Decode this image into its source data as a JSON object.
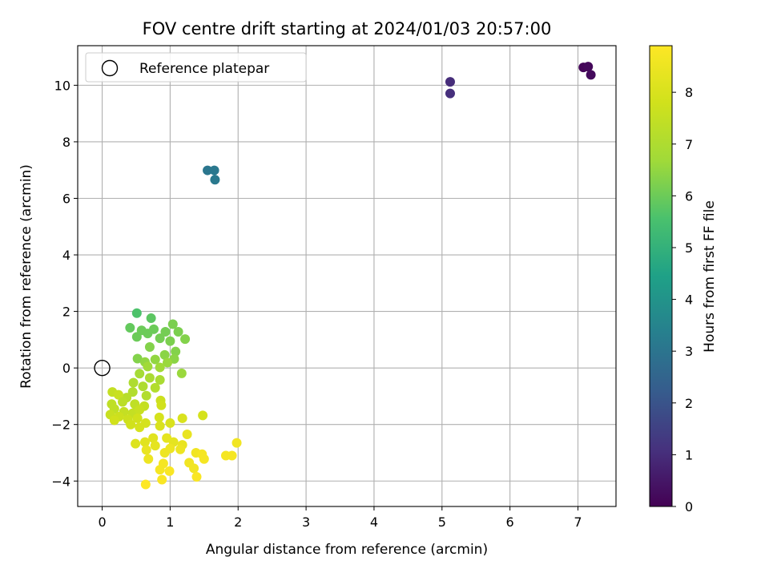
{
  "chart_data": {
    "type": "scatter",
    "title": "FOV centre drift starting at 2024/01/03 20:57:00",
    "xlabel": "Angular distance from reference (arcmin)",
    "ylabel": "Rotation from reference (arcmin)",
    "xlim": [
      -0.36,
      7.56
    ],
    "ylim": [
      -4.9,
      11.4
    ],
    "x_ticks": [
      "0",
      "1",
      "2",
      "3",
      "4",
      "5",
      "6",
      "7"
    ],
    "y_ticks": [
      "−4",
      "−2",
      "0",
      "2",
      "4",
      "6",
      "8",
      "10"
    ],
    "grid": true,
    "legend": {
      "location": "upper-left",
      "entry": "Reference platepar"
    },
    "colorbar": {
      "label": "Hours from first FF file",
      "colormap": "viridis",
      "range": [
        0,
        8.9
      ],
      "ticks": [
        "0",
        "1",
        "2",
        "3",
        "4",
        "5",
        "6",
        "7",
        "8"
      ]
    },
    "reference": {
      "x": 0,
      "y": 0
    },
    "points": [
      {
        "x": 7.08,
        "y": 10.63,
        "t": 0.1
      },
      {
        "x": 7.15,
        "y": 10.66,
        "t": 0.15
      },
      {
        "x": 7.19,
        "y": 10.37,
        "t": 0.2
      },
      {
        "x": 5.12,
        "y": 10.12,
        "t": 1.0
      },
      {
        "x": 5.12,
        "y": 9.71,
        "t": 1.05
      },
      {
        "x": 1.55,
        "y": 6.99,
        "t": 3.05
      },
      {
        "x": 1.65,
        "y": 6.99,
        "t": 3.1
      },
      {
        "x": 1.66,
        "y": 6.66,
        "t": 3.15
      },
      {
        "x": 0.51,
        "y": 1.94,
        "t": 5.6
      },
      {
        "x": 0.72,
        "y": 1.76,
        "t": 5.8
      },
      {
        "x": 0.41,
        "y": 1.42,
        "t": 5.9
      },
      {
        "x": 0.58,
        "y": 1.33,
        "t": 6.0
      },
      {
        "x": 0.76,
        "y": 1.37,
        "t": 6.0
      },
      {
        "x": 0.93,
        "y": 1.28,
        "t": 6.1
      },
      {
        "x": 1.04,
        "y": 1.55,
        "t": 6.2
      },
      {
        "x": 1.12,
        "y": 1.28,
        "t": 6.2
      },
      {
        "x": 1.22,
        "y": 1.02,
        "t": 6.3
      },
      {
        "x": 0.51,
        "y": 1.1,
        "t": 6.0
      },
      {
        "x": 0.67,
        "y": 1.22,
        "t": 6.0
      },
      {
        "x": 0.85,
        "y": 1.05,
        "t": 6.1
      },
      {
        "x": 1.0,
        "y": 0.95,
        "t": 6.2
      },
      {
        "x": 1.08,
        "y": 0.58,
        "t": 6.3
      },
      {
        "x": 0.7,
        "y": 0.74,
        "t": 6.3
      },
      {
        "x": 0.92,
        "y": 0.46,
        "t": 6.4
      },
      {
        "x": 1.06,
        "y": 0.32,
        "t": 6.4
      },
      {
        "x": 0.52,
        "y": 0.33,
        "t": 6.3
      },
      {
        "x": 0.63,
        "y": 0.21,
        "t": 6.5
      },
      {
        "x": 0.78,
        "y": 0.3,
        "t": 6.5
      },
      {
        "x": 0.96,
        "y": 0.19,
        "t": 6.6
      },
      {
        "x": 0.67,
        "y": 0.05,
        "t": 6.7
      },
      {
        "x": 0.85,
        "y": 0.02,
        "t": 6.7
      },
      {
        "x": 1.17,
        "y": -0.19,
        "t": 6.6
      },
      {
        "x": 0.55,
        "y": -0.2,
        "t": 6.8
      },
      {
        "x": 0.7,
        "y": -0.35,
        "t": 6.9
      },
      {
        "x": 0.85,
        "y": -0.42,
        "t": 6.9
      },
      {
        "x": 0.46,
        "y": -0.52,
        "t": 7.0
      },
      {
        "x": 0.6,
        "y": -0.65,
        "t": 7.0
      },
      {
        "x": 0.78,
        "y": -0.7,
        "t": 7.1
      },
      {
        "x": 0.45,
        "y": -0.85,
        "t": 7.1
      },
      {
        "x": 0.65,
        "y": -0.98,
        "t": 7.1
      },
      {
        "x": 0.36,
        "y": -1.05,
        "t": 7.2
      },
      {
        "x": 0.15,
        "y": -0.85,
        "t": 7.5
      },
      {
        "x": 0.24,
        "y": -0.95,
        "t": 7.6
      },
      {
        "x": 0.14,
        "y": -1.28,
        "t": 7.4
      },
      {
        "x": 0.3,
        "y": -1.2,
        "t": 7.3
      },
      {
        "x": 0.48,
        "y": -1.28,
        "t": 7.4
      },
      {
        "x": 0.62,
        "y": -1.35,
        "t": 7.5
      },
      {
        "x": 0.18,
        "y": -1.45,
        "t": 7.4
      },
      {
        "x": 0.32,
        "y": -1.55,
        "t": 7.5
      },
      {
        "x": 0.45,
        "y": -1.6,
        "t": 7.5
      },
      {
        "x": 0.55,
        "y": -1.48,
        "t": 7.6
      },
      {
        "x": 0.12,
        "y": -1.65,
        "t": 7.6
      },
      {
        "x": 0.25,
        "y": -1.72,
        "t": 7.7
      },
      {
        "x": 0.38,
        "y": -1.82,
        "t": 7.7
      },
      {
        "x": 0.52,
        "y": -1.78,
        "t": 7.8
      },
      {
        "x": 0.18,
        "y": -1.85,
        "t": 7.8
      },
      {
        "x": 0.42,
        "y": -2.0,
        "t": 7.8
      },
      {
        "x": 0.55,
        "y": -2.1,
        "t": 7.9
      },
      {
        "x": 0.64,
        "y": -1.95,
        "t": 7.9
      },
      {
        "x": 0.86,
        "y": -1.15,
        "t": 7.7
      },
      {
        "x": 0.87,
        "y": -1.32,
        "t": 7.8
      },
      {
        "x": 0.84,
        "y": -1.75,
        "t": 7.9
      },
      {
        "x": 0.85,
        "y": -2.05,
        "t": 8.0
      },
      {
        "x": 1.0,
        "y": -1.95,
        "t": 8.0
      },
      {
        "x": 1.18,
        "y": -1.78,
        "t": 8.0
      },
      {
        "x": 1.48,
        "y": -1.68,
        "t": 7.9
      },
      {
        "x": 0.49,
        "y": -2.68,
        "t": 8.1
      },
      {
        "x": 0.63,
        "y": -2.62,
        "t": 8.2
      },
      {
        "x": 0.75,
        "y": -2.48,
        "t": 8.2
      },
      {
        "x": 0.78,
        "y": -2.75,
        "t": 8.3
      },
      {
        "x": 0.95,
        "y": -2.48,
        "t": 8.3
      },
      {
        "x": 1.05,
        "y": -2.62,
        "t": 8.3
      },
      {
        "x": 1.18,
        "y": -2.72,
        "t": 8.4
      },
      {
        "x": 1.25,
        "y": -2.35,
        "t": 8.4
      },
      {
        "x": 0.68,
        "y": -3.22,
        "t": 8.5
      },
      {
        "x": 0.65,
        "y": -2.9,
        "t": 8.4
      },
      {
        "x": 0.92,
        "y": -3.0,
        "t": 8.5
      },
      {
        "x": 1.0,
        "y": -2.85,
        "t": 8.5
      },
      {
        "x": 1.15,
        "y": -2.88,
        "t": 8.5
      },
      {
        "x": 1.28,
        "y": -3.35,
        "t": 8.6
      },
      {
        "x": 1.35,
        "y": -3.55,
        "t": 8.6
      },
      {
        "x": 1.38,
        "y": -3.0,
        "t": 8.6
      },
      {
        "x": 1.47,
        "y": -3.05,
        "t": 8.7
      },
      {
        "x": 1.5,
        "y": -3.22,
        "t": 8.7
      },
      {
        "x": 1.82,
        "y": -3.1,
        "t": 8.7
      },
      {
        "x": 1.91,
        "y": -3.1,
        "t": 8.7
      },
      {
        "x": 1.98,
        "y": -2.65,
        "t": 8.6
      },
      {
        "x": 0.85,
        "y": -3.6,
        "t": 8.7
      },
      {
        "x": 0.9,
        "y": -3.38,
        "t": 8.7
      },
      {
        "x": 0.99,
        "y": -3.65,
        "t": 8.8
      },
      {
        "x": 0.88,
        "y": -3.95,
        "t": 8.8
      },
      {
        "x": 1.39,
        "y": -3.85,
        "t": 8.8
      },
      {
        "x": 0.64,
        "y": -4.12,
        "t": 8.9
      }
    ]
  }
}
